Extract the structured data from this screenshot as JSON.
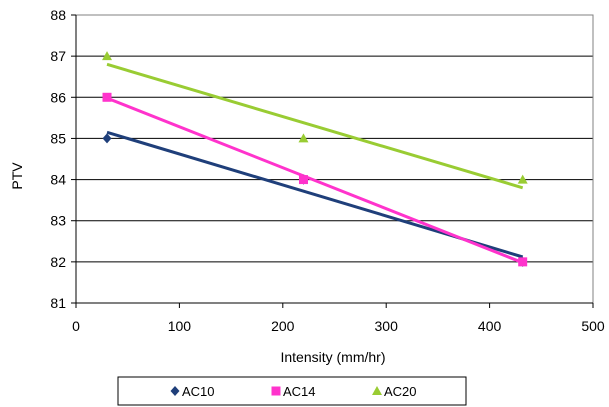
{
  "chart_data": {
    "type": "scatter",
    "title": "",
    "xlabel": "Intensity (mm/hr)",
    "ylabel": "PTV",
    "xlim": [
      0,
      500
    ],
    "ylim": [
      81,
      88
    ],
    "xticks": [
      0,
      100,
      200,
      300,
      400,
      500
    ],
    "yticks": [
      81,
      82,
      83,
      84,
      85,
      86,
      87,
      88
    ],
    "grid": "horizontal",
    "legend_position": "bottom",
    "series": [
      {
        "name": "AC10",
        "color": "#1f3f7a",
        "marker": "diamond",
        "x": [
          30,
          220,
          432
        ],
        "y": [
          85,
          84,
          82
        ],
        "trendline": [
          [
            30,
            85.15
          ],
          [
            432,
            82.12
          ]
        ]
      },
      {
        "name": "AC14",
        "color": "#ff33cc",
        "marker": "square",
        "x": [
          30,
          220,
          432
        ],
        "y": [
          86,
          84,
          82
        ],
        "trendline": [
          [
            30,
            85.98
          ],
          [
            432,
            81.98
          ]
        ]
      },
      {
        "name": "AC20",
        "color": "#99cc33",
        "marker": "triangle",
        "x": [
          30,
          220,
          432
        ],
        "y": [
          87,
          85,
          84
        ],
        "trendline": [
          [
            30,
            86.8
          ],
          [
            432,
            83.8
          ]
        ]
      }
    ]
  }
}
